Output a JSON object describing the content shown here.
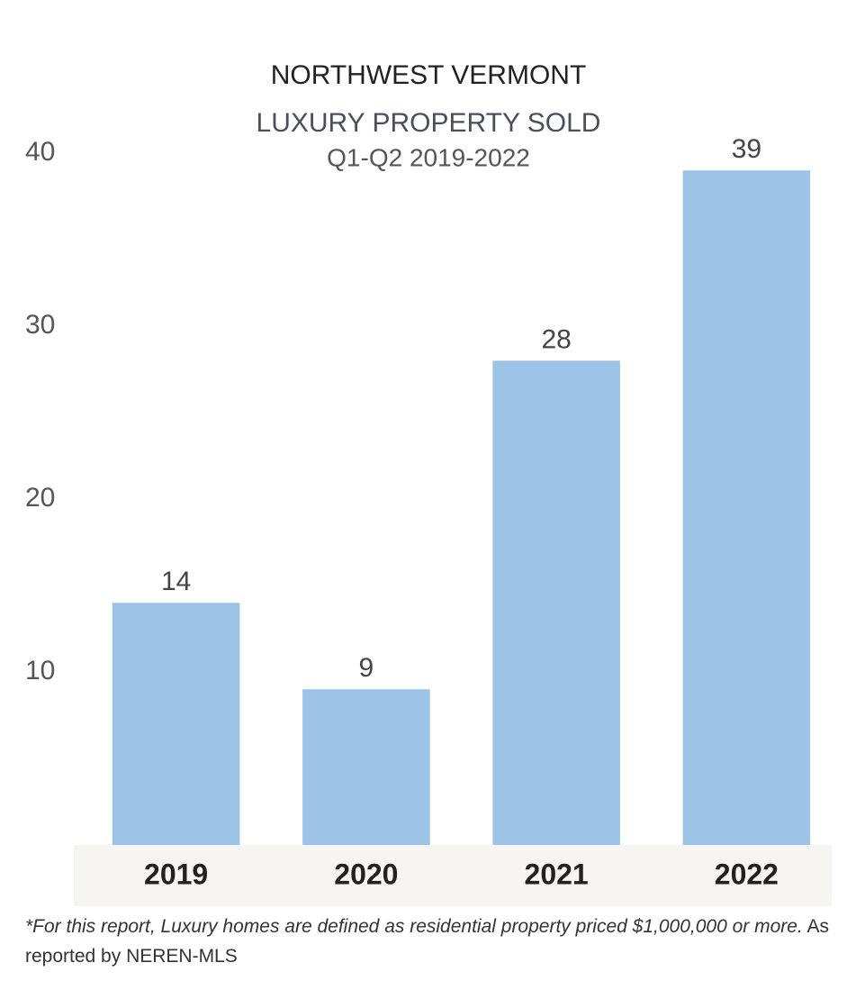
{
  "chart_data": {
    "type": "bar",
    "title": "NORTHWEST VERMONT",
    "subtitle": "LUXURY PROPERTY SOLD",
    "subtitle2": "Q1-Q2 2019-2022",
    "categories": [
      "2019",
      "2020",
      "2021",
      "2022"
    ],
    "values": [
      14,
      9,
      28,
      39
    ],
    "color": "#9dc3e6",
    "ylim": [
      0,
      40
    ],
    "yticks": [
      10,
      20,
      30,
      40
    ],
    "grid": false,
    "footnote_italic": "*For this report, Luxury homes are defined as residential property priced $1,000,000 or more.",
    "footnote": "As reported by NEREN-MLS"
  }
}
